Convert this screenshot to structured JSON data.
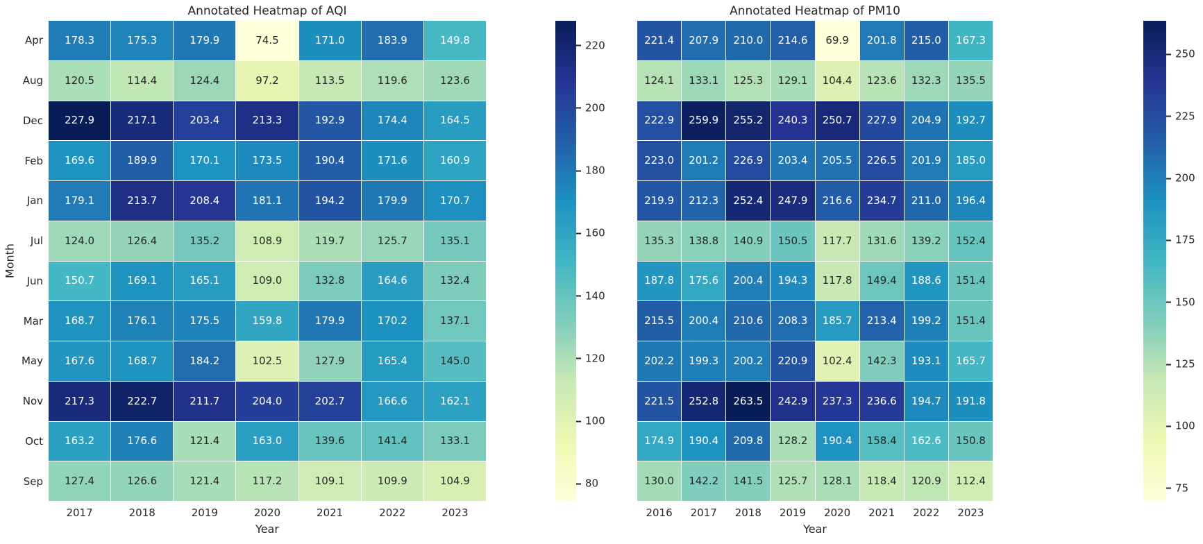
{
  "figure": {
    "background": "#ffffff",
    "text_color": "#262626",
    "grid_line_color": "#ffffff",
    "cell_text_colors": {
      "light_cells": "#262626",
      "dark_cells": "#ffffff"
    }
  },
  "colormap_stops": [
    "#ffffd9",
    "#edf8b1",
    "#c7e9b4",
    "#7fcdbb",
    "#41b6c4",
    "#1d91c0",
    "#225ea8",
    "#253494",
    "#081d58"
  ],
  "chart_data": [
    {
      "type": "heatmap",
      "title": "Annotated Heatmap of AQI",
      "xlabel": "Year",
      "ylabel": "Month",
      "colormap": "YlGnBu",
      "legend_position": "right colorbar",
      "rows": [
        "Apr",
        "Aug",
        "Dec",
        "Feb",
        "Jan",
        "Jul",
        "Jun",
        "Mar",
        "May",
        "Nov",
        "Oct",
        "Sep"
      ],
      "columns": [
        "2017",
        "2018",
        "2019",
        "2020",
        "2021",
        "2022",
        "2023"
      ],
      "values": [
        [
          178.3,
          175.3,
          179.9,
          74.5,
          171.0,
          183.9,
          149.8
        ],
        [
          120.5,
          114.4,
          124.4,
          97.2,
          113.5,
          119.6,
          123.6
        ],
        [
          227.9,
          217.1,
          203.4,
          213.3,
          192.9,
          174.4,
          164.5
        ],
        [
          169.6,
          189.9,
          170.1,
          173.5,
          190.4,
          171.6,
          160.9
        ],
        [
          179.1,
          213.7,
          208.4,
          181.1,
          194.2,
          179.9,
          170.7
        ],
        [
          124.0,
          126.4,
          135.2,
          108.9,
          119.7,
          125.7,
          135.1
        ],
        [
          150.7,
          169.1,
          165.1,
          109.0,
          132.8,
          164.6,
          132.4
        ],
        [
          168.7,
          176.1,
          175.5,
          159.8,
          179.9,
          170.2,
          137.1
        ],
        [
          167.6,
          168.7,
          184.2,
          102.5,
          127.9,
          165.4,
          145.0
        ],
        [
          217.3,
          222.7,
          211.7,
          204.0,
          202.7,
          166.6,
          162.1
        ],
        [
          163.2,
          176.6,
          121.4,
          163.0,
          139.6,
          141.4,
          133.1
        ],
        [
          127.4,
          126.6,
          121.4,
          117.2,
          109.1,
          109.9,
          104.9
        ]
      ],
      "vmin": 74.5,
      "vmax": 227.9,
      "colorbar_ticks": [
        220,
        200,
        180,
        160,
        140,
        120,
        100,
        80
      ]
    },
    {
      "type": "heatmap",
      "title": "Annotated Heatmap of PM10",
      "xlabel": "Year",
      "ylabel": "",
      "colormap": "YlGnBu",
      "legend_position": "right colorbar",
      "rows": [
        "Apr",
        "Aug",
        "Dec",
        "Feb",
        "Jan",
        "Jul",
        "Jun",
        "Mar",
        "May",
        "Nov",
        "Oct",
        "Sep"
      ],
      "columns": [
        "2016",
        "2017",
        "2018",
        "2019",
        "2020",
        "2021",
        "2022",
        "2023"
      ],
      "values": [
        [
          221.4,
          207.9,
          210.0,
          214.6,
          69.9,
          201.8,
          215.0,
          167.3
        ],
        [
          124.1,
          133.1,
          125.3,
          129.1,
          104.4,
          123.6,
          132.3,
          135.5
        ],
        [
          222.9,
          259.9,
          255.2,
          240.3,
          250.7,
          227.9,
          204.9,
          192.7
        ],
        [
          223.0,
          201.2,
          226.9,
          203.4,
          205.5,
          226.5,
          201.9,
          185.0
        ],
        [
          219.9,
          212.3,
          252.4,
          247.9,
          216.6,
          234.7,
          211.0,
          196.4
        ],
        [
          135.3,
          138.8,
          140.9,
          150.5,
          117.7,
          131.6,
          139.2,
          152.4
        ],
        [
          187.8,
          175.6,
          200.4,
          194.3,
          117.8,
          149.4,
          188.6,
          151.4
        ],
        [
          215.5,
          200.4,
          210.6,
          208.3,
          185.7,
          213.4,
          199.2,
          151.4
        ],
        [
          202.2,
          199.3,
          200.2,
          220.9,
          102.4,
          142.3,
          193.1,
          165.7
        ],
        [
          221.5,
          252.8,
          263.5,
          242.9,
          237.3,
          236.6,
          194.7,
          191.8
        ],
        [
          174.9,
          190.4,
          209.8,
          128.2,
          190.4,
          158.4,
          162.6,
          150.8
        ],
        [
          130.0,
          142.2,
          141.5,
          125.7,
          128.1,
          118.4,
          120.9,
          112.4
        ]
      ],
      "vmin": 69.9,
      "vmax": 263.5,
      "colorbar_ticks": [
        250,
        225,
        200,
        175,
        150,
        125,
        100,
        75
      ]
    }
  ]
}
